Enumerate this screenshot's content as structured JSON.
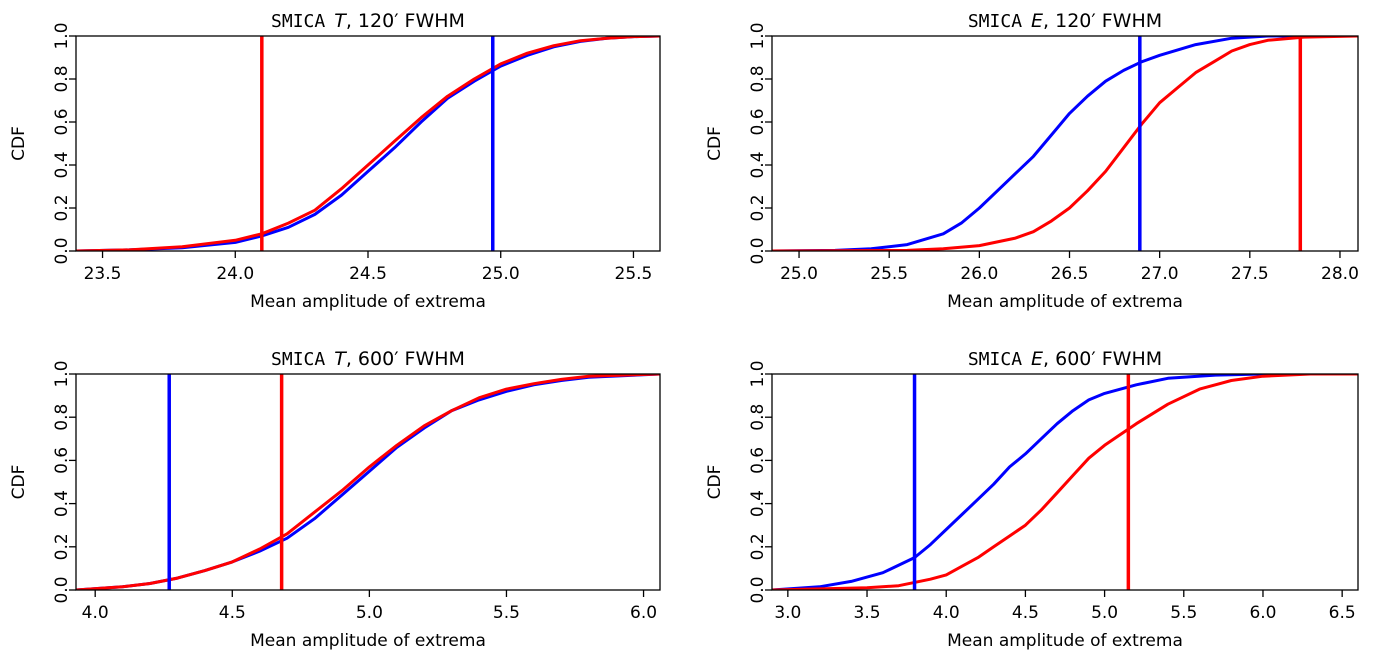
{
  "colors": {
    "blue": "#0000ff",
    "red": "#ff0000"
  },
  "chart_data": [
    {
      "type": "line",
      "title_mono": "SMICA",
      "title_italic": "T",
      "title_rest": ", 120′ FWHM",
      "xlabel": "Mean amplitude of extrema",
      "ylabel": "CDF",
      "xlim": [
        23.4,
        25.6
      ],
      "ylim": [
        0,
        1
      ],
      "xticks": [
        "23.5",
        "24.0",
        "24.5",
        "25.0",
        "25.5"
      ],
      "yticks": [
        "0.0",
        "0.2",
        "0.4",
        "0.6",
        "0.8",
        "1.0"
      ],
      "vlines": [
        {
          "x": 24.1,
          "color": "#ff0000"
        },
        {
          "x": 24.97,
          "color": "#0000ff"
        }
      ],
      "series": [
        {
          "color": "#0000ff",
          "x": [
            23.4,
            23.6,
            23.8,
            24.0,
            24.1,
            24.2,
            24.3,
            24.4,
            24.5,
            24.6,
            24.7,
            24.8,
            24.9,
            25.0,
            25.1,
            25.2,
            25.3,
            25.4,
            25.5,
            25.6
          ],
          "y": [
            0.0,
            0.005,
            0.015,
            0.04,
            0.07,
            0.11,
            0.17,
            0.26,
            0.37,
            0.48,
            0.6,
            0.71,
            0.79,
            0.86,
            0.91,
            0.95,
            0.975,
            0.99,
            0.997,
            1.0
          ]
        },
        {
          "color": "#ff0000",
          "x": [
            23.4,
            23.6,
            23.8,
            24.0,
            24.1,
            24.2,
            24.3,
            24.4,
            24.5,
            24.6,
            24.7,
            24.8,
            24.9,
            25.0,
            25.1,
            25.2,
            25.3,
            25.4,
            25.5,
            25.6
          ],
          "y": [
            0.0,
            0.005,
            0.02,
            0.05,
            0.08,
            0.13,
            0.19,
            0.29,
            0.4,
            0.51,
            0.62,
            0.72,
            0.8,
            0.87,
            0.92,
            0.955,
            0.978,
            0.99,
            0.997,
            1.0
          ]
        }
      ]
    },
    {
      "type": "line",
      "title_mono": "SMICA",
      "title_italic": "E",
      "title_rest": ", 120′ FWHM",
      "xlabel": "Mean amplitude of extrema",
      "ylabel": "CDF",
      "xlim": [
        24.85,
        28.1
      ],
      "ylim": [
        0,
        1
      ],
      "xticks": [
        "25.0",
        "25.5",
        "26.0",
        "26.5",
        "27.0",
        "27.5",
        "28.0"
      ],
      "yticks": [
        "0.0",
        "0.2",
        "0.4",
        "0.6",
        "0.8",
        "1.0"
      ],
      "vlines": [
        {
          "x": 26.89,
          "color": "#0000ff"
        },
        {
          "x": 27.78,
          "color": "#ff0000"
        }
      ],
      "series": [
        {
          "color": "#0000ff",
          "x": [
            24.85,
            25.2,
            25.4,
            25.6,
            25.8,
            25.9,
            26.0,
            26.1,
            26.2,
            26.3,
            26.4,
            26.5,
            26.6,
            26.7,
            26.8,
            26.9,
            27.0,
            27.2,
            27.4,
            27.6,
            28.1
          ],
          "y": [
            0.0,
            0.003,
            0.01,
            0.03,
            0.08,
            0.13,
            0.2,
            0.28,
            0.36,
            0.44,
            0.54,
            0.64,
            0.72,
            0.79,
            0.84,
            0.88,
            0.91,
            0.96,
            0.99,
            1.0,
            1.0
          ]
        },
        {
          "color": "#ff0000",
          "x": [
            24.85,
            25.6,
            25.8,
            26.0,
            26.2,
            26.3,
            26.4,
            26.5,
            26.6,
            26.7,
            26.8,
            26.9,
            27.0,
            27.1,
            27.2,
            27.3,
            27.4,
            27.5,
            27.6,
            27.8,
            28.1
          ],
          "y": [
            0.0,
            0.003,
            0.01,
            0.025,
            0.06,
            0.09,
            0.14,
            0.2,
            0.28,
            0.37,
            0.48,
            0.59,
            0.69,
            0.76,
            0.83,
            0.88,
            0.93,
            0.96,
            0.98,
            0.995,
            1.0
          ]
        }
      ]
    },
    {
      "type": "line",
      "title_mono": "SMICA",
      "title_italic": "T",
      "title_rest": ", 600′ FWHM",
      "xlabel": "Mean amplitude of extrema",
      "ylabel": "CDF",
      "xlim": [
        3.93,
        6.06
      ],
      "ylim": [
        0,
        1
      ],
      "xticks": [
        "4.0",
        "4.5",
        "5.0",
        "5.5",
        "6.0"
      ],
      "yticks": [
        "0.0",
        "0.2",
        "0.4",
        "0.6",
        "0.8",
        "1.0"
      ],
      "vlines": [
        {
          "x": 4.27,
          "color": "#0000ff"
        },
        {
          "x": 4.68,
          "color": "#ff0000"
        }
      ],
      "series": [
        {
          "color": "#0000ff",
          "x": [
            3.93,
            4.1,
            4.2,
            4.3,
            4.4,
            4.5,
            4.6,
            4.7,
            4.8,
            4.9,
            5.0,
            5.1,
            5.2,
            5.3,
            5.4,
            5.5,
            5.6,
            5.7,
            5.8,
            6.06
          ],
          "y": [
            0.0,
            0.015,
            0.03,
            0.055,
            0.09,
            0.13,
            0.18,
            0.24,
            0.33,
            0.44,
            0.55,
            0.66,
            0.75,
            0.83,
            0.88,
            0.92,
            0.95,
            0.97,
            0.985,
            1.0
          ]
        },
        {
          "color": "#ff0000",
          "x": [
            3.93,
            4.1,
            4.2,
            4.3,
            4.4,
            4.5,
            4.6,
            4.7,
            4.8,
            4.9,
            5.0,
            5.1,
            5.2,
            5.3,
            5.4,
            5.5,
            5.6,
            5.7,
            5.8,
            6.06
          ],
          "y": [
            0.0,
            0.015,
            0.03,
            0.055,
            0.09,
            0.13,
            0.19,
            0.26,
            0.36,
            0.46,
            0.57,
            0.67,
            0.76,
            0.83,
            0.89,
            0.93,
            0.955,
            0.975,
            0.99,
            1.0
          ]
        }
      ]
    },
    {
      "type": "line",
      "title_mono": "SMICA",
      "title_italic": "E",
      "title_rest": ", 600′ FWHM",
      "xlabel": "Mean amplitude of extrema",
      "ylabel": "CDF",
      "xlim": [
        2.9,
        6.6
      ],
      "ylim": [
        0,
        1
      ],
      "xticks": [
        "3.0",
        "3.5",
        "4.0",
        "4.5",
        "5.0",
        "5.5",
        "6.0",
        "6.5"
      ],
      "yticks": [
        "0.0",
        "0.2",
        "0.4",
        "0.6",
        "0.8",
        "1.0"
      ],
      "vlines": [
        {
          "x": 3.8,
          "color": "#0000ff"
        },
        {
          "x": 5.15,
          "color": "#ff0000"
        }
      ],
      "series": [
        {
          "color": "#0000ff",
          "x": [
            2.9,
            3.2,
            3.4,
            3.6,
            3.8,
            3.9,
            4.0,
            4.1,
            4.2,
            4.3,
            4.4,
            4.5,
            4.6,
            4.7,
            4.8,
            4.9,
            5.0,
            5.2,
            5.4,
            5.7,
            6.0,
            6.6
          ],
          "y": [
            0.0,
            0.015,
            0.04,
            0.08,
            0.15,
            0.21,
            0.28,
            0.35,
            0.42,
            0.49,
            0.57,
            0.63,
            0.7,
            0.77,
            0.83,
            0.88,
            0.91,
            0.95,
            0.98,
            0.995,
            1.0,
            1.0
          ]
        },
        {
          "color": "#ff0000",
          "x": [
            2.9,
            3.5,
            3.7,
            3.9,
            4.0,
            4.1,
            4.2,
            4.3,
            4.4,
            4.5,
            4.6,
            4.7,
            4.8,
            4.9,
            5.0,
            5.1,
            5.2,
            5.4,
            5.6,
            5.8,
            6.0,
            6.3,
            6.6
          ],
          "y": [
            0.0,
            0.01,
            0.02,
            0.05,
            0.07,
            0.11,
            0.15,
            0.2,
            0.25,
            0.3,
            0.37,
            0.45,
            0.53,
            0.61,
            0.67,
            0.72,
            0.77,
            0.86,
            0.93,
            0.97,
            0.99,
            1.0,
            1.0
          ]
        }
      ]
    }
  ]
}
